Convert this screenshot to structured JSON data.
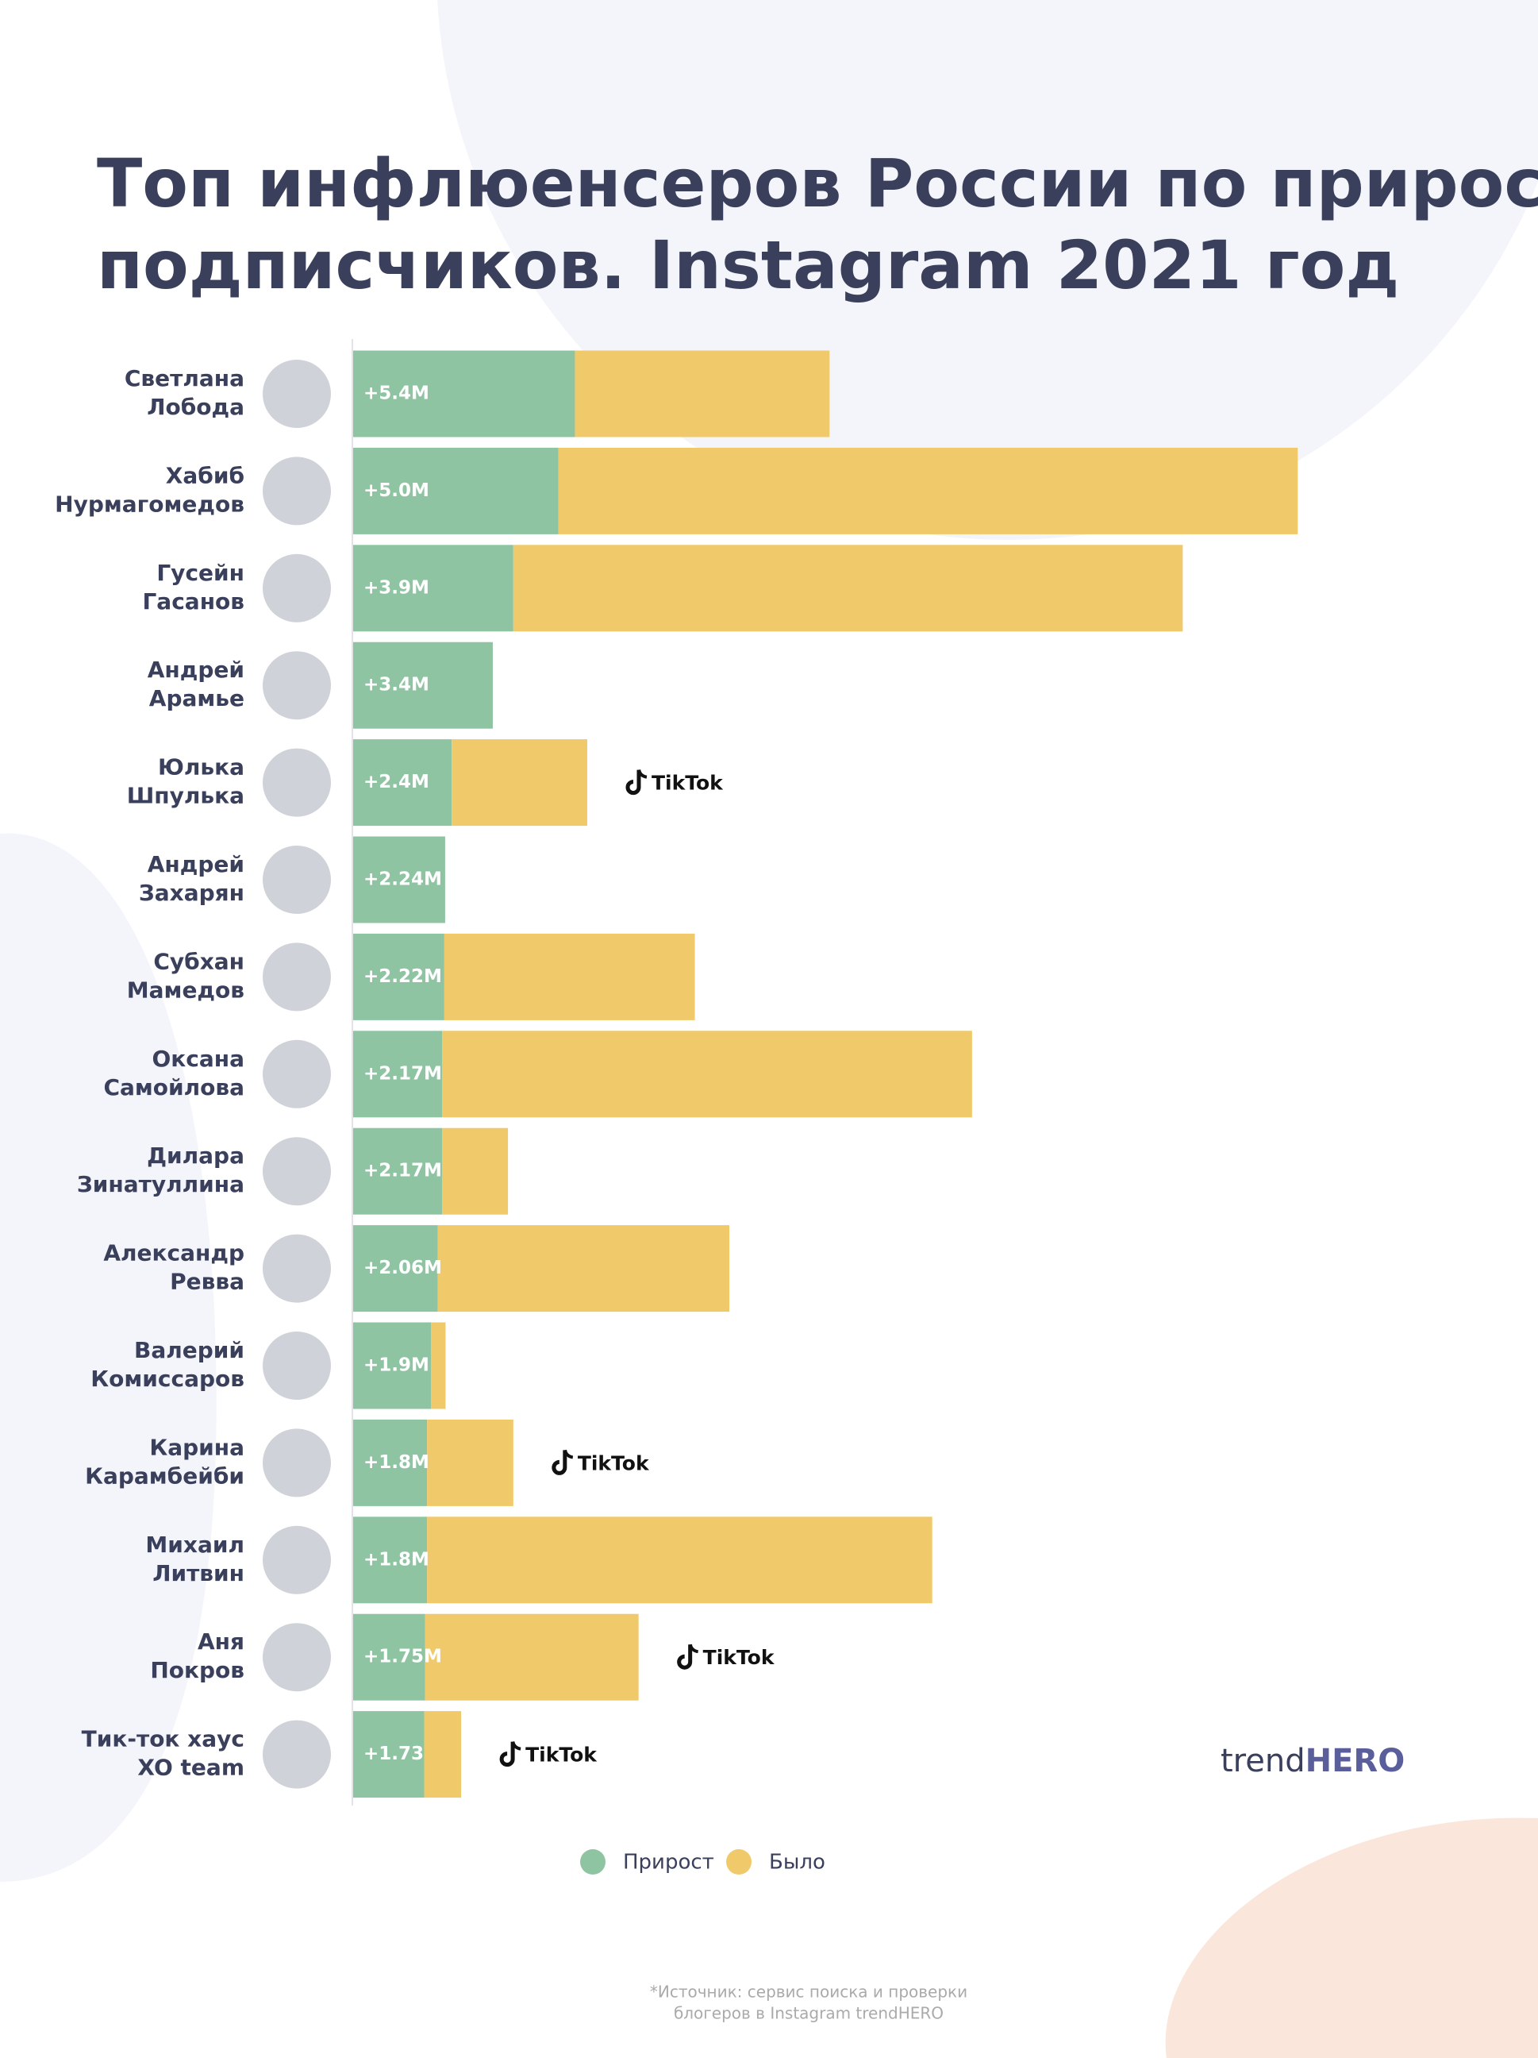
{
  "chart_data": {
    "type": "stacked-barh",
    "title": [
      "Топ инфлюенсеров России по приросту",
      "подписчиков. Instagram 2021 год"
    ],
    "categories": [
      [
        "Светлана",
        "Лобода"
      ],
      [
        "Хабиб",
        "Нурмагомедов"
      ],
      [
        "Гусейн",
        "Гасанов"
      ],
      [
        "Андрей",
        "Арамье"
      ],
      [
        "Юлька",
        "Шпулька"
      ],
      [
        "Андрей",
        "Захарян"
      ],
      [
        "Субхан",
        "Мамедов"
      ],
      [
        "Оксана",
        "Самойлова"
      ],
      [
        "Дилара",
        "Зинатуллина"
      ],
      [
        "Александр",
        "Ревва"
      ],
      [
        "Валерий",
        "Комиссаров"
      ],
      [
        "Карина",
        "Карамбейби"
      ],
      [
        "Михаил",
        "Литвин"
      ],
      [
        "Аня",
        "Покров"
      ],
      [
        "Тик-ток хаус",
        "XO team"
      ]
    ],
    "series": [
      {
        "name": "Прирост",
        "color": "#8fc4a3",
        "values": [
          5.4,
          5.0,
          3.9,
          3.4,
          2.4,
          2.24,
          2.22,
          2.17,
          2.17,
          2.06,
          1.9,
          1.8,
          1.8,
          1.75,
          1.73
        ],
        "value_labels": [
          "+5.4M",
          "+5.0M",
          "+3.9M",
          "+3.4M",
          "+2.4M",
          "+2.24M",
          "+2.22M",
          "+2.17M",
          "+2.17M",
          "+2.06M",
          "+1.9M",
          "+1.8M",
          "+1.8M",
          "+1.75M",
          "+1.73"
        ]
      },
      {
        "name": "Было",
        "color": "#f0c96a",
        "values": [
          6.2,
          18.0,
          16.3,
          0,
          3.3,
          0,
          6.1,
          12.9,
          1.6,
          7.1,
          0.35,
          2.1,
          12.3,
          5.2,
          0.9
        ]
      }
    ],
    "xlim": [
      0,
      28
    ],
    "annotations": [
      {
        "text": "TikTok",
        "category": 4
      },
      {
        "text": "TikTok",
        "category": 11
      },
      {
        "text": "TikTok",
        "category": 13
      },
      {
        "text": "TikTok",
        "category": 14
      }
    ]
  },
  "footer": {
    "source": [
      "*Источник: сервис поиска и проверки",
      "блогеров в Instagram trendHERO"
    ],
    "brand": [
      "trend",
      "HERO"
    ]
  }
}
